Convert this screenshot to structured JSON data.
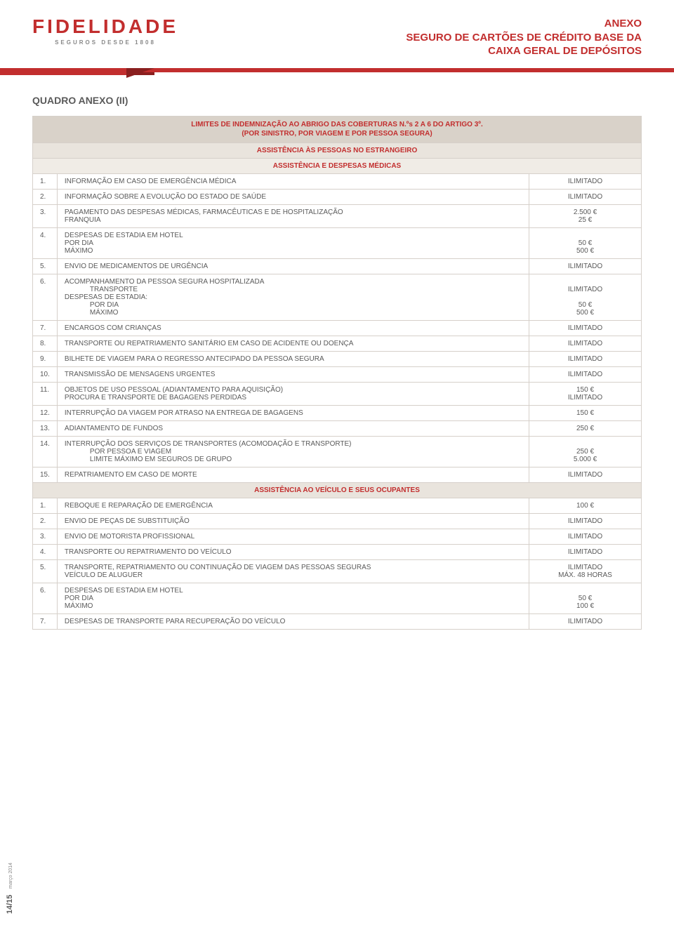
{
  "colors": {
    "brand_red": "#c22e2e",
    "brand_red_dark": "#8a1f1f",
    "text_gray": "#5a5a5a",
    "border": "#d6d0ca",
    "header_bg": "#d9d2c9",
    "subheader_bg": "#e9e4dd",
    "subheader2_bg": "#f0ece6",
    "page_bg": "#ffffff"
  },
  "logo": {
    "name": "FIDELIDADE",
    "tagline": "SEGUROS DESDE 1808"
  },
  "doc_title": {
    "line1": "ANEXO",
    "line2": "SEGURO DE CARTÕES DE CRÉDITO BASE DA",
    "line3": "CAIXA GERAL DE DEPÓSITOS"
  },
  "section_title": "QUADRO ANEXO (II)",
  "table": {
    "main_header": {
      "line1": "LIMITES DE INDEMNIZAÇÃO AO ABRIGO DAS COBERTURAS N.ºs 2 A 6 DO ARTIGO 3º.",
      "line2": "(POR SINISTRO, POR VIAGEM E POR PESSOA SEGURA)"
    },
    "sub1": "ASSISTÊNCIA ÀS PESSOAS NO ESTRANGEIRO",
    "sub2": "ASSISTÊNCIA E DESPESAS MÉDICAS",
    "sectionA": [
      {
        "n": "1.",
        "desc_lines": [
          "INFORMAÇÃO EM CASO DE EMERGÊNCIA MÉDICA"
        ],
        "val_lines": [
          "ILIMITADO"
        ]
      },
      {
        "n": "2.",
        "desc_lines": [
          "INFORMAÇÃO SOBRE A EVOLUÇÃO DO ESTADO DE SAÚDE"
        ],
        "val_lines": [
          "ILIMITADO"
        ]
      },
      {
        "n": "3.",
        "desc_lines": [
          "PAGAMENTO DAS DESPESAS MÉDICAS, FARMACÊUTICAS E DE HOSPITALIZAÇÃO",
          "FRANQUIA"
        ],
        "val_lines": [
          "2.500 €",
          "25 €"
        ]
      },
      {
        "n": "4.",
        "desc_lines": [
          "DESPESAS DE ESTADIA EM HOTEL",
          "POR DIA",
          "MÁXIMO"
        ],
        "val_lines": [
          "",
          "50 €",
          "500 €"
        ]
      },
      {
        "n": "5.",
        "desc_lines": [
          "ENVIO DE MEDICAMENTOS DE URGÊNCIA"
        ],
        "val_lines": [
          "ILIMITADO"
        ]
      },
      {
        "n": "6.",
        "desc_lines": [
          "ACOMPANHAMENTO DA PESSOA SEGURA HOSPITALIZADA",
          "    TRANSPORTE",
          "DESPESAS DE ESTADIA:",
          "    POR DIA",
          "    MÁXIMO"
        ],
        "val_lines": [
          "",
          "ILIMITADO",
          "",
          "50 €",
          "500 €"
        ]
      },
      {
        "n": "7.",
        "desc_lines": [
          "ENCARGOS COM CRIANÇAS"
        ],
        "val_lines": [
          "ILIMITADO"
        ]
      },
      {
        "n": "8.",
        "desc_lines": [
          "TRANSPORTE OU REPATRIAMENTO SANITÁRIO EM CASO DE ACIDENTE OU DOENÇA"
        ],
        "val_lines": [
          "ILIMITADO"
        ]
      },
      {
        "n": "9.",
        "desc_lines": [
          "BILHETE DE VIAGEM PARA O REGRESSO ANTECIPADO DA PESSOA SEGURA"
        ],
        "val_lines": [
          "ILIMITADO"
        ]
      },
      {
        "n": "10.",
        "desc_lines": [
          "TRANSMISSÃO DE MENSAGENS URGENTES"
        ],
        "val_lines": [
          "ILIMITADO"
        ]
      },
      {
        "n": "11.",
        "desc_lines": [
          "OBJETOS DE USO PESSOAL (ADIANTAMENTO PARA AQUISIÇÃO)",
          "PROCURA E TRANSPORTE DE BAGAGENS PERDIDAS"
        ],
        "val_lines": [
          "150 €",
          "ILIMITADO"
        ]
      },
      {
        "n": "12.",
        "desc_lines": [
          "INTERRUPÇÃO DA VIAGEM POR ATRASO NA ENTREGA DE BAGAGENS"
        ],
        "val_lines": [
          "150 €"
        ]
      },
      {
        "n": "13.",
        "desc_lines": [
          "ADIANTAMENTO DE FUNDOS"
        ],
        "val_lines": [
          "250 €"
        ]
      },
      {
        "n": "14.",
        "desc_lines": [
          "INTERRUPÇÃO DOS SERVIÇOS DE TRANSPORTES (ACOMODAÇÃO E TRANSPORTE)",
          "    POR PESSOA E VIAGEM",
          "    LIMITE MÁXIMO EM SEGUROS DE GRUPO"
        ],
        "val_lines": [
          "",
          "250 €",
          "5.000 €"
        ]
      },
      {
        "n": "15.",
        "desc_lines": [
          "REPATRIAMENTO EM CASO DE MORTE"
        ],
        "val_lines": [
          "ILIMITADO"
        ]
      }
    ],
    "sub3": "ASSISTÊNCIA AO VEÍCULO E SEUS OCUPANTES",
    "sectionB": [
      {
        "n": "1.",
        "desc_lines": [
          "REBOQUE E REPARAÇÃO DE EMERGÊNCIA"
        ],
        "val_lines": [
          "100 €"
        ]
      },
      {
        "n": "2.",
        "desc_lines": [
          "ENVIO DE PEÇAS DE SUBSTITUIÇÃO"
        ],
        "val_lines": [
          "ILIMITADO"
        ]
      },
      {
        "n": "3.",
        "desc_lines": [
          "ENVIO DE MOTORISTA PROFISSIONAL"
        ],
        "val_lines": [
          "ILIMITADO"
        ]
      },
      {
        "n": "4.",
        "desc_lines": [
          "TRANSPORTE OU REPATRIAMENTO DO VEÍCULO"
        ],
        "val_lines": [
          "ILIMITADO"
        ]
      },
      {
        "n": "5.",
        "desc_lines": [
          "TRANSPORTE, REPATRIAMENTO OU CONTINUAÇÃO DE VIAGEM DAS PESSOAS SEGURAS",
          "VEÍCULO DE ALUGUER"
        ],
        "val_lines": [
          "ILIMITADO",
          "MÁX. 48 HORAS"
        ]
      },
      {
        "n": "6.",
        "desc_lines": [
          "DESPESAS DE ESTADIA EM HOTEL",
          "POR DIA",
          "MÁXIMO"
        ],
        "val_lines": [
          "",
          "50 €",
          "100 €"
        ]
      },
      {
        "n": "7.",
        "desc_lines": [
          "DESPESAS DE TRANSPORTE PARA RECUPERAÇÃO DO VEÍCULO"
        ],
        "val_lines": [
          "ILIMITADO"
        ]
      }
    ]
  },
  "footer": {
    "page": "14/15",
    "date": "março 2014"
  }
}
